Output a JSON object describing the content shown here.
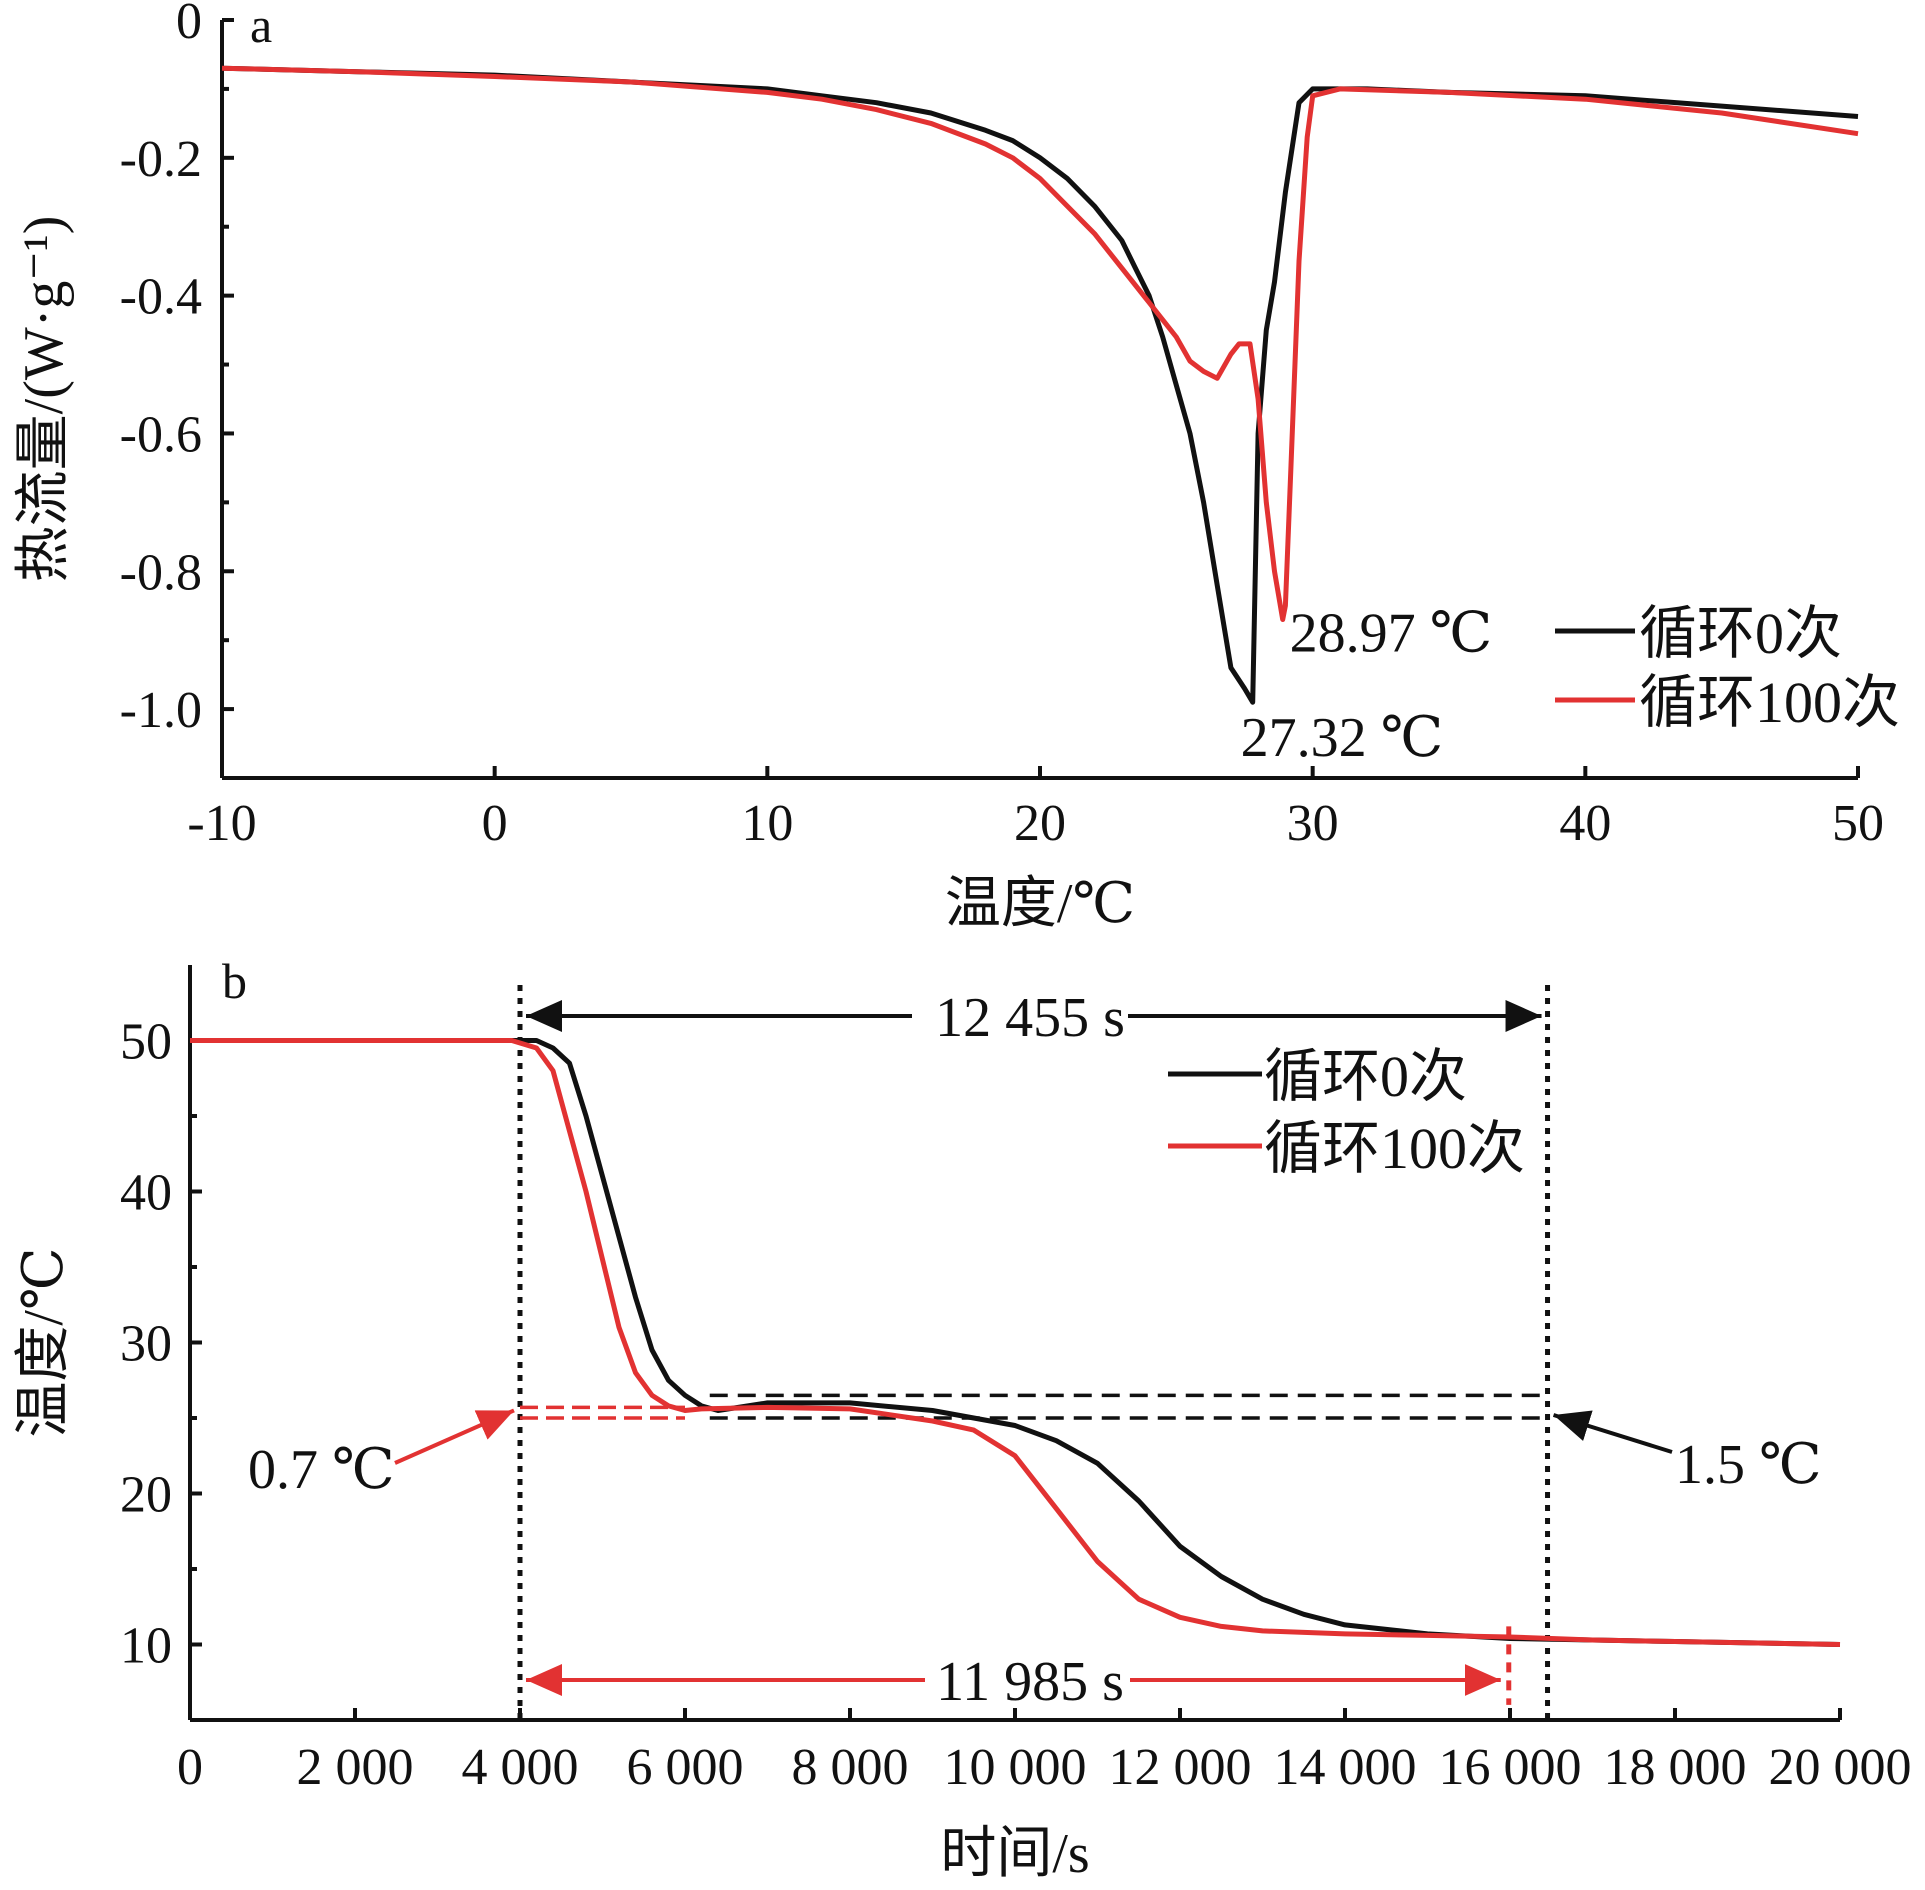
{
  "colors": {
    "black": "#111111",
    "red": "#e23232"
  },
  "chart_data": [
    {
      "panel": "a",
      "type": "line",
      "xlabel": "温度/℃",
      "ylabel": "热流量/(W·g⁻¹)",
      "xlim": [
        -10,
        50
      ],
      "ylim": [
        -1.1,
        0
      ],
      "xticks": [
        -10,
        0,
        10,
        20,
        30,
        40,
        50
      ],
      "xtick_labels": [
        "-10",
        "0",
        "10",
        "20",
        "30",
        "40",
        "50"
      ],
      "yticks": [
        0,
        -0.2,
        -0.4,
        -0.6,
        -0.8,
        -1.0
      ],
      "ytick_labels": [
        "0",
        "-0.2",
        "-0.4",
        "-0.6",
        "-0.8",
        "-1.0"
      ],
      "legend": {
        "position": "bottom-right",
        "entries": [
          "循环0次",
          "循环100次"
        ]
      },
      "series": [
        {
          "name": "循环0次",
          "color": "#111111",
          "x": [
            -10,
            -5,
            0,
            5,
            10,
            12,
            14,
            16,
            18,
            19,
            20,
            21,
            22,
            23,
            23.5,
            24,
            24.5,
            25,
            25.5,
            26,
            26.5,
            27,
            27.5,
            27.8,
            28,
            28.3,
            28.6,
            29,
            29.5,
            30,
            32,
            35,
            40,
            45,
            50
          ],
          "y": [
            -0.07,
            -0.075,
            -0.08,
            -0.09,
            -0.1,
            -0.11,
            -0.12,
            -0.135,
            -0.16,
            -0.175,
            -0.2,
            -0.23,
            -0.27,
            -0.32,
            -0.36,
            -0.4,
            -0.46,
            -0.53,
            -0.6,
            -0.7,
            -0.82,
            -0.94,
            -0.97,
            -0.99,
            -0.6,
            -0.45,
            -0.38,
            -0.25,
            -0.12,
            -0.1,
            -0.1,
            -0.105,
            -0.11,
            -0.125,
            -0.14
          ]
        },
        {
          "name": "循环100次",
          "color": "#e23232",
          "x": [
            -10,
            -5,
            0,
            5,
            10,
            12,
            14,
            16,
            18,
            19,
            20,
            21,
            22,
            23,
            24,
            24.5,
            25,
            25.5,
            26,
            26.5,
            27,
            27.3,
            27.7,
            28,
            28.3,
            28.6,
            28.9,
            29,
            29.2,
            29.5,
            29.8,
            30,
            31,
            35,
            40,
            45,
            50
          ],
          "y": [
            -0.07,
            -0.075,
            -0.082,
            -0.09,
            -0.105,
            -0.115,
            -0.13,
            -0.15,
            -0.18,
            -0.2,
            -0.23,
            -0.27,
            -0.31,
            -0.36,
            -0.41,
            -0.435,
            -0.46,
            -0.495,
            -0.51,
            -0.52,
            -0.485,
            -0.47,
            -0.47,
            -0.55,
            -0.7,
            -0.8,
            -0.87,
            -0.85,
            -0.65,
            -0.35,
            -0.17,
            -0.11,
            -0.1,
            -0.105,
            -0.115,
            -0.135,
            -0.165
          ]
        }
      ],
      "annotations": [
        {
          "text": "28.97 ℃",
          "x": 28.97,
          "y": -0.87,
          "color": "#111111"
        },
        {
          "text": "27.32 ℃",
          "x": 27.8,
          "y": -0.99,
          "color": "#111111"
        }
      ]
    },
    {
      "panel": "b",
      "type": "line",
      "xlabel": "时间/s",
      "ylabel": "温度/℃",
      "xlim": [
        0,
        20000
      ],
      "ylim": [
        5,
        55
      ],
      "xticks": [
        0,
        2000,
        4000,
        6000,
        8000,
        10000,
        12000,
        14000,
        16000,
        18000,
        20000
      ],
      "xtick_labels": [
        "0",
        "2 000",
        "4 000",
        "6 000",
        "8 000",
        "10 000",
        "12 000",
        "14 000",
        "16 000",
        "18 000",
        "20 000"
      ],
      "yticks": [
        10,
        20,
        30,
        40,
        50
      ],
      "ytick_labels": [
        "10",
        "20",
        "30",
        "40",
        "50"
      ],
      "legend": {
        "position": "top-right",
        "entries": [
          "循环0次",
          "循环100次"
        ]
      },
      "series": [
        {
          "name": "循环0次",
          "color": "#111111",
          "x": [
            0,
            2000,
            3900,
            4200,
            4400,
            4600,
            4800,
            5000,
            5200,
            5400,
            5600,
            5800,
            6000,
            6200,
            6400,
            7000,
            8000,
            9000,
            10000,
            10500,
            11000,
            11500,
            12000,
            12500,
            13000,
            13500,
            14000,
            15000,
            16000,
            17000,
            18000,
            20000
          ],
          "y": [
            50,
            50,
            50,
            50,
            49.5,
            48.5,
            45,
            41,
            37,
            33,
            29.5,
            27.5,
            26.5,
            25.8,
            25.5,
            26,
            26,
            25.5,
            24.5,
            23.5,
            22,
            19.5,
            16.5,
            14.5,
            13,
            12,
            11.3,
            10.7,
            10.4,
            10.3,
            10.2,
            10
          ]
        },
        {
          "name": "循环100次",
          "color": "#e23232",
          "x": [
            0,
            2000,
            3900,
            4200,
            4400,
            4600,
            4800,
            5000,
            5200,
            5400,
            5600,
            5800,
            6000,
            6200,
            7000,
            8000,
            9000,
            9500,
            10000,
            10500,
            11000,
            11500,
            12000,
            12500,
            13000,
            14000,
            15000,
            16000,
            17000,
            18000,
            20000
          ],
          "y": [
            50,
            50,
            50,
            49.5,
            48,
            44,
            40,
            35.5,
            31,
            28,
            26.5,
            25.8,
            25.5,
            25.6,
            25.7,
            25.6,
            24.8,
            24.2,
            22.5,
            19,
            15.5,
            13,
            11.8,
            11.2,
            10.9,
            10.7,
            10.6,
            10.5,
            10.3,
            10.2,
            10
          ]
        }
      ],
      "annotations": [
        {
          "text": "12 455 s",
          "x1": 4000,
          "x2": 16455,
          "y": 52,
          "color": "#111111"
        },
        {
          "text": "11 985 s",
          "x1": 4000,
          "x2": 15985,
          "y": 6.3,
          "color": "#e23232"
        },
        {
          "text": "0.7 ℃",
          "y1": 25.0,
          "y2": 25.7,
          "color": "#e23232"
        },
        {
          "text": "1.5 ℃",
          "y1": 25.0,
          "y2": 26.5,
          "color": "#111111"
        }
      ]
    }
  ]
}
